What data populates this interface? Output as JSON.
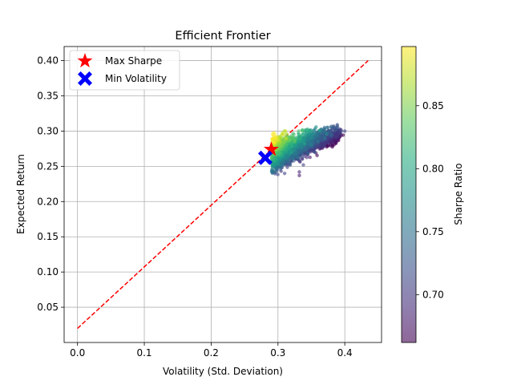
{
  "chart_data": {
    "type": "scatter",
    "title": "Efficient Frontier",
    "xlabel": "Volatility (Std. Deviation)",
    "ylabel": "Expected Return",
    "xlim": [
      -0.02,
      0.455
    ],
    "ylim": [
      0.0,
      0.42
    ],
    "xticks": [
      "0.0",
      "0.1",
      "0.2",
      "0.3",
      "0.4"
    ],
    "xtick_values": [
      0.0,
      0.1,
      0.2,
      0.3,
      0.4
    ],
    "yticks": [
      "0.05",
      "0.10",
      "0.15",
      "0.20",
      "0.25",
      "0.30",
      "0.35",
      "0.40"
    ],
    "ytick_values": [
      0.05,
      0.1,
      0.15,
      0.2,
      0.25,
      0.3,
      0.35,
      0.4
    ],
    "grid": true,
    "legend_position": "top-left",
    "colormap": "viridis",
    "colorbar": {
      "label": "Sharpe Ratio",
      "range": [
        0.662,
        0.897
      ],
      "ticks": [
        "0.70",
        "0.75",
        "0.80",
        "0.85"
      ],
      "tick_values": [
        0.7,
        0.75,
        0.8,
        0.85
      ]
    },
    "capital_market_line": {
      "color": "#ff0000",
      "style": "dashed",
      "x": [
        0.0,
        0.435
      ],
      "y": [
        0.02,
        0.4
      ]
    },
    "portfolio_cloud": {
      "sample_points": [
        {
          "x": 0.295,
          "y": 0.262,
          "sharpe": 0.8
        },
        {
          "x": 0.305,
          "y": 0.275,
          "sharpe": 0.84
        },
        {
          "x": 0.3,
          "y": 0.287,
          "sharpe": 0.89
        },
        {
          "x": 0.312,
          "y": 0.29,
          "sharpe": 0.88
        },
        {
          "x": 0.325,
          "y": 0.285,
          "sharpe": 0.84
        },
        {
          "x": 0.32,
          "y": 0.27,
          "sharpe": 0.8
        },
        {
          "x": 0.33,
          "y": 0.262,
          "sharpe": 0.76
        },
        {
          "x": 0.318,
          "y": 0.252,
          "sharpe": 0.73
        },
        {
          "x": 0.305,
          "y": 0.248,
          "sharpe": 0.74
        },
        {
          "x": 0.34,
          "y": 0.282,
          "sharpe": 0.8
        },
        {
          "x": 0.35,
          "y": 0.28,
          "sharpe": 0.77
        },
        {
          "x": 0.345,
          "y": 0.268,
          "sharpe": 0.74
        },
        {
          "x": 0.36,
          "y": 0.285,
          "sharpe": 0.76
        },
        {
          "x": 0.37,
          "y": 0.29,
          "sharpe": 0.76
        },
        {
          "x": 0.38,
          "y": 0.294,
          "sharpe": 0.74
        },
        {
          "x": 0.395,
          "y": 0.3,
          "sharpe": 0.72
        },
        {
          "x": 0.4,
          "y": 0.3,
          "sharpe": 0.71
        },
        {
          "x": 0.362,
          "y": 0.301,
          "sharpe": 0.8
        },
        {
          "x": 0.373,
          "y": 0.296,
          "sharpe": 0.78
        },
        {
          "x": 0.332,
          "y": 0.237,
          "sharpe": 0.68
        },
        {
          "x": 0.332,
          "y": 0.242,
          "sharpe": 0.69
        },
        {
          "x": 0.31,
          "y": 0.24,
          "sharpe": 0.71
        },
        {
          "x": 0.338,
          "y": 0.252,
          "sharpe": 0.71
        },
        {
          "x": 0.355,
          "y": 0.27,
          "sharpe": 0.73
        }
      ]
    },
    "markers": [
      {
        "name": "Max Sharpe",
        "x": 0.29,
        "y": 0.274,
        "shape": "star",
        "color": "#ff0000"
      },
      {
        "name": "Min Volatility",
        "x": 0.281,
        "y": 0.262,
        "shape": "x",
        "color": "#0000ff"
      }
    ]
  }
}
